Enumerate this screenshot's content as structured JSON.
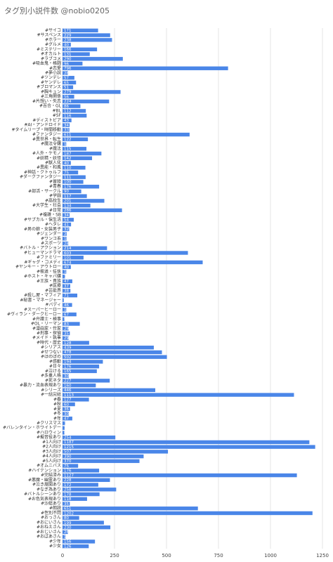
{
  "chart_data": {
    "type": "barh",
    "title": "タグ別小説件数 @nobio0205",
    "categories": [
      "#サイコ",
      "#サスペンス",
      "#ホラー",
      "#グルメ",
      "#ミステリー",
      "#オカルト",
      "#ラブコメ",
      "#吸血鬼・格闘",
      "#恋愛",
      "#夢小説",
      "#ツンデレ",
      "#ヤンデレ",
      "#ブロマンス",
      "#胸キュン",
      "#三角関係",
      "#片想い・失恋",
      "#百合・GL",
      "#BL",
      "#SF",
      "#ディストピア",
      "#AI・アンドロイド",
      "#タイムリープ・時間移動",
      "#ファンタジー",
      "#異世界・転生",
      "#魔法令嬢",
      "#魔法",
      "#人外・ケモノ",
      "#妖精・妖怪",
      "#獣人化",
      "#異能・和風",
      "#神話・クトゥルフ",
      "#ダークファンタジー",
      "#冒険",
      "#青春",
      "#部活・サークル",
      "#学園",
      "#高校生",
      "#大学生・社会",
      "#日常",
      "#複雑・SB",
      "#サブカル・保生活",
      "#ヘタレ",
      "#男の娘・女装男子",
      "#ジェンダー",
      "#ワンコ系",
      "#スポーツ",
      "#バトル・アクション",
      "#ヒューマンドラマ",
      "#ファミリー",
      "#ギャグ・コメディ",
      "#ヤンキー・アウトロー",
      "#極道・任侠",
      "#ホスト・キャバ嬢",
      "#王族・貴族",
      "#医療",
      "#芸能界",
      "#殺し屋・マフィア",
      "#秘書・マネージャー",
      "#バディ",
      "#スーパーヒーロー",
      "#ヴィラン・ダークヒーロー",
      "#弁護士・検事",
      "#OL・リーマン",
      "#漫画家・作家",
      "#刑事・探偵",
      "#メイド・執事",
      "#時代・歴史",
      "#シリアス",
      "#せつない",
      "#ほのぼの",
      "#感動",
      "#日々",
      "#泣ける",
      "#多重人格",
      "#死ネタ",
      "#暴力・流血表現あり",
      "#シリーズ",
      "#一話完結",
      "#春",
      "#秋",
      "#夏",
      "#冬",
      "#年",
      "#クリスマス",
      "#バレンタイン・ホワイトデー",
      "#ハロウィン",
      "#擬音役あり",
      "#1人向け",
      "#2人向け",
      "#3人向け",
      "#4人向け",
      "#5人向け",
      "#オムニバス",
      "#ハイテンション",
      "#完結済み",
      "#悪魔・幽霊あり",
      "#泣き展開あり",
      "#なぎ為あり",
      "#バトルシーンあり",
      "#お色気表現あり",
      "#沙総あり",
      "#朗読",
      "#性別不問",
      "#おっさん",
      "#おにいさん",
      "#おねえさん",
      "#おじいさん",
      "#おばあさん",
      "#少年",
      "#少女"
    ],
    "values": [
      171,
      229,
      238,
      40,
      166,
      131,
      290,
      96,
      796,
      26,
      57,
      65,
      51,
      279,
      56,
      224,
      86,
      112,
      116,
      43,
      34,
      33,
      611,
      122,
      18,
      115,
      187,
      142,
      40,
      110,
      75,
      111,
      100,
      176,
      90,
      117,
      201,
      134,
      286,
      34,
      54,
      41,
      32,
      20,
      19,
      28,
      214,
      603,
      101,
      674,
      40,
      18,
      12,
      47,
      37,
      38,
      71,
      6,
      46,
      18,
      67,
      9,
      83,
      29,
      35,
      29,
      128,
      439,
      478,
      502,
      194,
      176,
      165,
      30,
      227,
      160,
      446,
      1113,
      127,
      60,
      36,
      30,
      47,
      13,
      10,
      9,
      254,
      1187,
      1215,
      507,
      390,
      370,
      75,
      176,
      1127,
      228,
      172,
      258,
      178,
      118,
      35,
      651,
      1202,
      80,
      199,
      230,
      26,
      15,
      156,
      126
    ],
    "color": "#4a86e8",
    "xlim": [
      0,
      1250
    ],
    "xticks": [
      0,
      250,
      500,
      750,
      1000,
      1250
    ],
    "grid": true
  }
}
